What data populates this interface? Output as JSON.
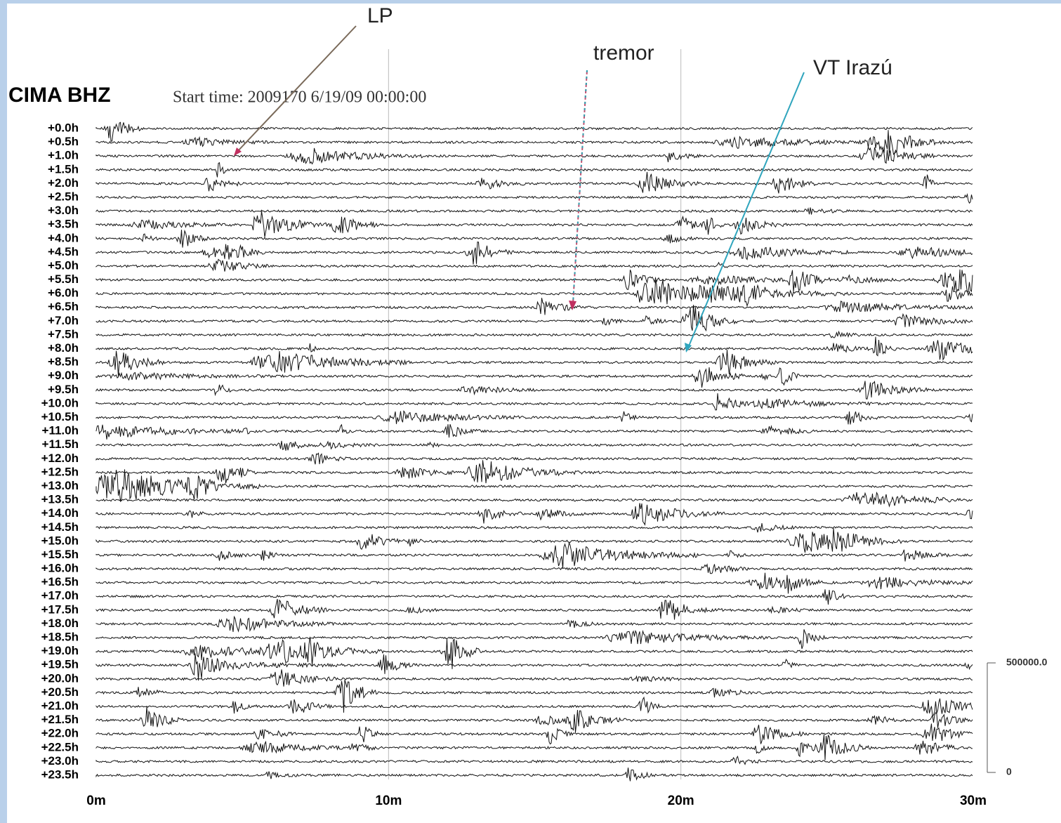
{
  "chart_data": {
    "type": "helicorder",
    "title": "CIMA BHZ",
    "subtitle": "Start time: 2009170  6/19/09 00:00:00",
    "annotations": [
      "LP",
      "tremor",
      "VT Irazú"
    ],
    "xlim": [
      0,
      30
    ],
    "xticks": [
      {
        "value": 0,
        "label": "0m"
      },
      {
        "value": 10,
        "label": "10m"
      },
      {
        "value": 20,
        "label": "20m"
      },
      {
        "value": 30,
        "label": "30m"
      }
    ],
    "ylim": [
      0,
      23.5
    ],
    "yticks": [
      {
        "value": 0,
        "label": "+0.0h"
      },
      {
        "value": 0.5,
        "label": "+0.5h"
      },
      {
        "value": 1,
        "label": "+1.0h"
      },
      {
        "value": 1.5,
        "label": "+1.5h"
      },
      {
        "value": 2,
        "label": "+2.0h"
      },
      {
        "value": 2.5,
        "label": "+2.5h"
      },
      {
        "value": 3,
        "label": "+3.0h"
      },
      {
        "value": 3.5,
        "label": "+3.5h"
      },
      {
        "value": 4,
        "label": "+4.0h"
      },
      {
        "value": 4.5,
        "label": "+4.5h"
      },
      {
        "value": 5,
        "label": "+5.0h"
      },
      {
        "value": 5.5,
        "label": "+5.5h"
      },
      {
        "value": 6,
        "label": "+6.0h"
      },
      {
        "value": 6.5,
        "label": "+6.5h"
      },
      {
        "value": 7,
        "label": "+7.0h"
      },
      {
        "value": 7.5,
        "label": "+7.5h"
      },
      {
        "value": 8,
        "label": "+8.0h"
      },
      {
        "value": 8.5,
        "label": "+8.5h"
      },
      {
        "value": 9,
        "label": "+9.0h"
      },
      {
        "value": 9.5,
        "label": "+9.5h"
      },
      {
        "value": 10,
        "label": "+10.0h"
      },
      {
        "value": 10.5,
        "label": "+10.5h"
      },
      {
        "value": 11,
        "label": "+11.0h"
      },
      {
        "value": 11.5,
        "label": "+11.5h"
      },
      {
        "value": 12,
        "label": "+12.0h"
      },
      {
        "value": 12.5,
        "label": "+12.5h"
      },
      {
        "value": 13,
        "label": "+13.0h"
      },
      {
        "value": 13.5,
        "label": "+13.5h"
      },
      {
        "value": 14,
        "label": "+14.0h"
      },
      {
        "value": 14.5,
        "label": "+14.5h"
      },
      {
        "value": 15,
        "label": "+15.0h"
      },
      {
        "value": 15.5,
        "label": "+15.5h"
      },
      {
        "value": 16,
        "label": "+16.0h"
      },
      {
        "value": 16.5,
        "label": "+16.5h"
      },
      {
        "value": 17,
        "label": "+17.0h"
      },
      {
        "value": 17.5,
        "label": "+17.5h"
      },
      {
        "value": 18,
        "label": "+18.0h"
      },
      {
        "value": 18.5,
        "label": "+18.5h"
      },
      {
        "value": 19,
        "label": "+19.0h"
      },
      {
        "value": 19.5,
        "label": "+19.5h"
      },
      {
        "value": 20,
        "label": "+20.0h"
      },
      {
        "value": 20.5,
        "label": "+20.5h"
      },
      {
        "value": 21,
        "label": "+21.0h"
      },
      {
        "value": 21.5,
        "label": "+21.5h"
      },
      {
        "value": 22,
        "label": "+22.0h"
      },
      {
        "value": 22.5,
        "label": "+22.5h"
      },
      {
        "value": 23,
        "label": "+23.0h"
      },
      {
        "value": 23.5,
        "label": "+23.5h"
      }
    ],
    "amplitude_scale": {
      "lim": [
        0,
        500000
      ],
      "ticks": [
        {
          "value": 500000,
          "label": "500000.0"
        },
        0
      ]
    }
  }
}
